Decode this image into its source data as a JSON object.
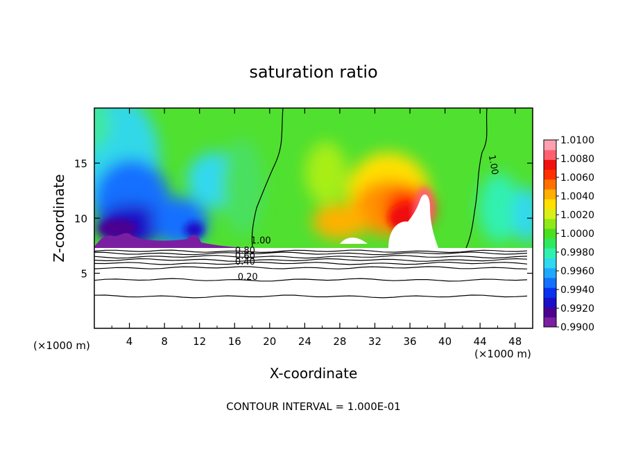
{
  "chart_data": {
    "type": "heatmap",
    "title": "saturation ratio",
    "xlabel": "X-coordinate",
    "ylabel": "Z-coordinate",
    "x_unit_left": "(×1000 m)",
    "x_unit_right": "(×1000 m)",
    "footer": "CONTOUR INTERVAL = 1.000E-01",
    "xlim": [
      0,
      50
    ],
    "ylim": [
      0,
      20
    ],
    "x_ticks": [
      4,
      8,
      12,
      16,
      20,
      24,
      28,
      32,
      36,
      40,
      44,
      48
    ],
    "x_tick_labels": [
      "4",
      "8",
      "12",
      "16",
      "20",
      "24",
      "28",
      "32",
      "36",
      "40",
      "44",
      "48"
    ],
    "y_ticks": [
      5,
      10,
      15
    ],
    "y_tick_labels": [
      "5",
      "10",
      "15"
    ],
    "colorbar": {
      "min": 0.99,
      "max": 1.01,
      "labels": [
        "1.0100",
        "1.0080",
        "1.0060",
        "1.0040",
        "1.0020",
        "1.0000",
        "0.9980",
        "0.9960",
        "0.9940",
        "0.9920",
        "0.9900"
      ],
      "colors": [
        "#7a1fa2",
        "#4b0090",
        "#1a10c8",
        "#0a30f0",
        "#1470ff",
        "#20a8ff",
        "#30d8f0",
        "#30f0b0",
        "#2ee860",
        "#48e020",
        "#90e818",
        "#d8f018",
        "#ffe000",
        "#ffb000",
        "#ff7000",
        "#ff3000",
        "#f01010",
        "#ff6070",
        "#ffa0b0"
      ]
    },
    "cloud_base_z": 7.2,
    "contour_labels": [
      {
        "text": "1.00",
        "x": 19.0,
        "z": 7.7
      },
      {
        "text": "1.00",
        "x": 45.2,
        "z": 14.8
      },
      {
        "text": "0.80",
        "x": 17.2,
        "z": 6.8
      },
      {
        "text": "0.60",
        "x": 17.2,
        "z": 6.3
      },
      {
        "text": "0.40",
        "x": 17.2,
        "z": 5.8
      },
      {
        "text": "0.20",
        "x": 17.5,
        "z": 4.4
      }
    ],
    "contours_below_base_z": [
      7.0,
      6.8,
      6.5,
      6.2,
      5.9,
      5.5,
      4.4,
      2.9
    ]
  }
}
